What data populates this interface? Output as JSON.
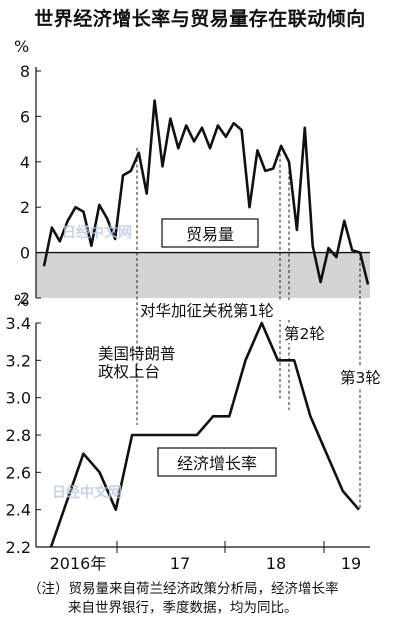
{
  "title": "世界经济增长率与贸易量存在联动倾向",
  "note": {
    "line1": "（注）贸易量来自荷兰经济政策分析局，经济增长率",
    "line2": "来自世界银行，季度数据，均为同比。"
  },
  "watermark": "日经中文网",
  "chart_data": [
    {
      "type": "line",
      "series": [
        {
          "name": "贸易量",
          "color": "#111111"
        }
      ],
      "y_unit": "%",
      "ylim": [
        -2,
        8
      ],
      "yticks": [
        "8",
        "6",
        "4",
        "2",
        "0",
        "-2"
      ],
      "negative_region_fill": "#d4d4d4",
      "x_month_start": 1,
      "points": [
        {
          "t": 1,
          "y": -0.6
        },
        {
          "t": 2,
          "y": 1.1
        },
        {
          "t": 3,
          "y": 0.5
        },
        {
          "t": 4,
          "y": 1.4
        },
        {
          "t": 5,
          "y": 2.0
        },
        {
          "t": 6,
          "y": 1.8
        },
        {
          "t": 7,
          "y": 0.3
        },
        {
          "t": 8,
          "y": 2.1
        },
        {
          "t": 9,
          "y": 1.5
        },
        {
          "t": 10,
          "y": 0.6
        },
        {
          "t": 11,
          "y": 3.4
        },
        {
          "t": 12,
          "y": 3.6
        },
        {
          "t": 13,
          "y": 4.4
        },
        {
          "t": 14,
          "y": 2.6
        },
        {
          "t": 15,
          "y": 6.7
        },
        {
          "t": 16,
          "y": 3.8
        },
        {
          "t": 17,
          "y": 5.9
        },
        {
          "t": 18,
          "y": 4.6
        },
        {
          "t": 19,
          "y": 5.6
        },
        {
          "t": 20,
          "y": 4.9
        },
        {
          "t": 21,
          "y": 5.5
        },
        {
          "t": 22,
          "y": 4.6
        },
        {
          "t": 23,
          "y": 5.6
        },
        {
          "t": 24,
          "y": 5.1
        },
        {
          "t": 25,
          "y": 5.7
        },
        {
          "t": 26,
          "y": 5.4
        },
        {
          "t": 27,
          "y": 2.0
        },
        {
          "t": 28,
          "y": 4.5
        },
        {
          "t": 29,
          "y": 3.6
        },
        {
          "t": 30,
          "y": 3.7
        },
        {
          "t": 31,
          "y": 4.7
        },
        {
          "t": 32,
          "y": 4.0
        },
        {
          "t": 33,
          "y": 1.0
        },
        {
          "t": 34,
          "y": 5.5
        },
        {
          "t": 35,
          "y": 0.3
        },
        {
          "t": 36,
          "y": -1.3
        },
        {
          "t": 37,
          "y": 0.2
        },
        {
          "t": 38,
          "y": -0.2
        },
        {
          "t": 39,
          "y": 1.4
        },
        {
          "t": 40,
          "y": 0.1
        },
        {
          "t": 41,
          "y": 0.0
        },
        {
          "t": 42,
          "y": -1.4
        }
      ]
    },
    {
      "type": "line",
      "series": [
        {
          "name": "经济增长率",
          "color": "#111111"
        }
      ],
      "y_unit": "%",
      "ylim": [
        2.2,
        3.4
      ],
      "yticks": [
        "3.4",
        "3.2",
        "3.0",
        "2.8",
        "2.6",
        "2.4",
        "2.2"
      ],
      "x": [
        "2016年",
        "17",
        "18",
        "19"
      ],
      "points": [
        {
          "q": 1,
          "y": 2.2
        },
        {
          "q": 2,
          "y": 2.45
        },
        {
          "q": 3,
          "y": 2.7
        },
        {
          "q": 4,
          "y": 2.6
        },
        {
          "q": 5,
          "y": 2.4
        },
        {
          "q": 6,
          "y": 2.8
        },
        {
          "q": 7,
          "y": 2.8
        },
        {
          "q": 8,
          "y": 2.8
        },
        {
          "q": 9,
          "y": 2.8
        },
        {
          "q": 10,
          "y": 2.8
        },
        {
          "q": 11,
          "y": 2.9
        },
        {
          "q": 12,
          "y": 2.9
        },
        {
          "q": 13,
          "y": 3.2
        },
        {
          "q": 14,
          "y": 3.4
        },
        {
          "q": 15,
          "y": 3.2
        },
        {
          "q": 16,
          "y": 3.2
        },
        {
          "q": 17,
          "y": 2.9
        },
        {
          "q": 18,
          "y": 2.7
        },
        {
          "q": 19,
          "y": 2.5
        },
        {
          "q": 20,
          "y": 2.4
        }
      ]
    }
  ],
  "annotations": {
    "trade_label": "贸易量",
    "growth_label": "经济增长率",
    "tariff_round1": "对华加征关税第1轮",
    "tariff_round2": "第2轮",
    "tariff_round3": "第3轮",
    "trump": "美国特朗普\n政权上台"
  }
}
